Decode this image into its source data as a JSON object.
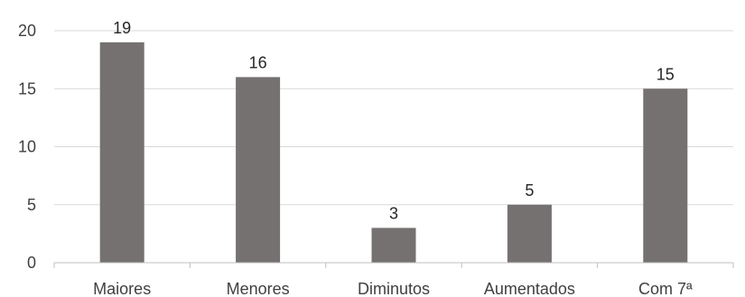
{
  "chart_data": {
    "type": "bar",
    "title": "",
    "xlabel": "",
    "ylabel": "",
    "categories": [
      "Maiores",
      "Menores",
      "Diminutos",
      "Aumentados",
      "Com 7ª"
    ],
    "values": [
      19,
      16,
      3,
      5,
      15
    ],
    "ylim": [
      0,
      20
    ],
    "yticks": [
      0,
      5,
      10,
      15,
      20
    ],
    "grid": true,
    "legend": "none",
    "data_labels": true,
    "bar_color": "#757170"
  }
}
